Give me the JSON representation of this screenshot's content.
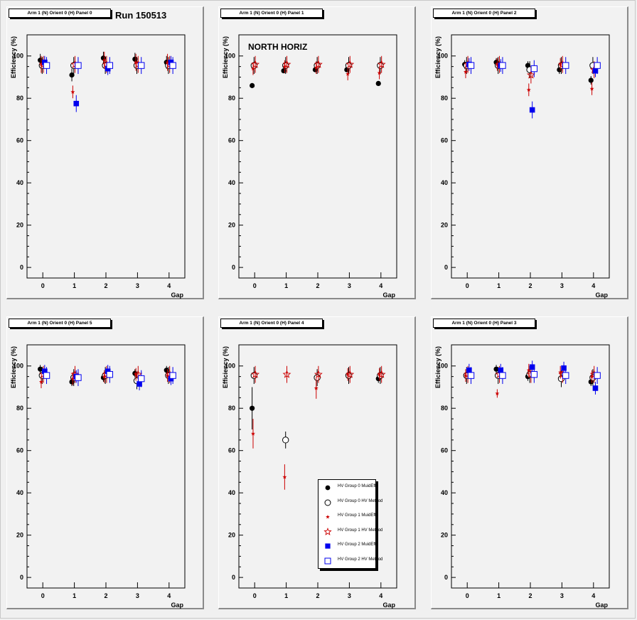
{
  "run_label": "Run 150513",
  "region_label": "NORTH HORIZ",
  "xlabel": "Gap",
  "ylabel": "Efficiency (%)",
  "x_ticks": [
    "0",
    "1",
    "2",
    "3",
    "4"
  ],
  "y_ticks": [
    "0",
    "20",
    "40",
    "60",
    "80",
    "100"
  ],
  "legend": [
    {
      "name": "HV Group 0 MuidEff",
      "marker": "circle-filled",
      "color": "#000000"
    },
    {
      "name": "HV Group 0 HV Method",
      "marker": "circle-open",
      "color": "#000000"
    },
    {
      "name": "HV Group 1 MuidEff",
      "marker": "star-filled",
      "color": "#cc0000"
    },
    {
      "name": "HV Group 1 HV Method",
      "marker": "star-open",
      "color": "#cc0000"
    },
    {
      "name": "HV Group 2 MuidEff",
      "marker": "square-filled",
      "color": "#0000ee"
    },
    {
      "name": "HV Group 2 HV Method",
      "marker": "square-open",
      "color": "#0000ee"
    }
  ],
  "chart_data": [
    {
      "type": "scatter",
      "title": "Arm 1 (N) Orient 0 (H) Panel 0",
      "xlabel": "Gap",
      "ylabel": "Efficiency (%)",
      "xlim": [
        -0.5,
        4.5
      ],
      "ylim": [
        -5,
        110
      ],
      "series": [
        {
          "name": "HV Group 0 MuidEff",
          "x": [
            0,
            1,
            2,
            3,
            4
          ],
          "y": [
            98,
            91,
            99,
            98.5,
            97
          ],
          "err": [
            3,
            3,
            3,
            3,
            3
          ]
        },
        {
          "name": "HV Group 0 HV Method",
          "x": [
            0,
            1,
            2,
            3,
            4
          ],
          "y": [
            95.5,
            95.5,
            95.5,
            95.5,
            95.5
          ],
          "err": [
            4,
            4,
            4,
            4,
            4
          ]
        },
        {
          "name": "HV Group 1 MuidEff",
          "x": [
            0,
            1,
            2,
            3,
            4
          ],
          "y": [
            96,
            83,
            98,
            97,
            97
          ],
          "err": [
            4,
            3,
            4,
            4,
            4
          ]
        },
        {
          "name": "HV Group 1 HV Method",
          "x": [
            0,
            1,
            2,
            3,
            4
          ],
          "y": [
            96,
            96,
            96,
            96,
            96
          ],
          "err": [
            4,
            4,
            4,
            4,
            4
          ]
        },
        {
          "name": "HV Group 2 MuidEff",
          "x": [
            0,
            1,
            2,
            3,
            4
          ],
          "y": [
            97,
            77.5,
            94,
            null,
            97
          ],
          "err": [
            3,
            4,
            3,
            0,
            3
          ]
        },
        {
          "name": "HV Group 2 HV Method",
          "x": [
            0,
            1,
            2,
            3,
            4
          ],
          "y": [
            95.5,
            95.5,
            95.5,
            95.5,
            95.5
          ],
          "err": [
            4,
            4,
            4,
            4,
            4
          ]
        }
      ]
    },
    {
      "type": "scatter",
      "title": "Arm 1 (N) Orient 0 (H) Panel 1",
      "xlabel": "Gap",
      "ylabel": "Efficiency (%)",
      "xlim": [
        -0.5,
        4.5
      ],
      "ylim": [
        -5,
        110
      ],
      "series": [
        {
          "name": "HV Group 0 MuidEff",
          "x": [
            0,
            1,
            2,
            3,
            4
          ],
          "y": [
            86,
            93,
            93.5,
            93.5,
            87
          ],
          "err": [
            1,
            1,
            1,
            1,
            1
          ]
        },
        {
          "name": "HV Group 0 HV Method",
          "x": [
            0,
            1,
            2,
            3,
            4
          ],
          "y": [
            95.5,
            95.5,
            95.5,
            95.5,
            95.5
          ],
          "err": [
            4,
            4,
            4,
            4,
            4
          ]
        },
        {
          "name": "HV Group 1 MuidEff",
          "x": [
            0,
            1,
            2,
            3,
            4
          ],
          "y": [
            94,
            95,
            94.5,
            91.5,
            92
          ],
          "err": [
            3,
            3,
            3,
            3,
            3
          ]
        },
        {
          "name": "HV Group 1 HV Method",
          "x": [
            0,
            1,
            2,
            3,
            4
          ],
          "y": [
            96,
            96,
            96,
            96,
            96
          ],
          "err": [
            4,
            4,
            4,
            4,
            4
          ]
        },
        {
          "name": "HV Group 2 MuidEff",
          "x": [
            0,
            1,
            2,
            3,
            4
          ],
          "y": [
            null,
            null,
            null,
            null,
            null
          ],
          "err": [
            0,
            0,
            0,
            0,
            0
          ]
        },
        {
          "name": "HV Group 2 HV Method",
          "x": [
            0,
            1,
            2,
            3,
            4
          ],
          "y": [
            null,
            null,
            null,
            null,
            null
          ],
          "err": [
            0,
            0,
            0,
            0,
            0
          ]
        }
      ]
    },
    {
      "type": "scatter",
      "title": "Arm 1 (N) Orient 0 (H) Panel 2",
      "xlabel": "Gap",
      "ylabel": "Efficiency (%)",
      "xlim": [
        -0.5,
        4.5
      ],
      "ylim": [
        -5,
        110
      ],
      "series": [
        {
          "name": "HV Group 0 MuidEff",
          "x": [
            0,
            1,
            2,
            3,
            4
          ],
          "y": [
            96,
            97,
            95.5,
            93.5,
            88.5
          ],
          "err": [
            2,
            2,
            2,
            2,
            2
          ]
        },
        {
          "name": "HV Group 0 HV Method",
          "x": [
            0,
            1,
            2,
            3,
            4
          ],
          "y": [
            95.5,
            95.5,
            93.5,
            95.5,
            95.5
          ],
          "err": [
            4,
            4,
            4,
            4,
            4
          ]
        },
        {
          "name": "HV Group 1 MuidEff",
          "x": [
            0,
            1,
            2,
            3,
            4
          ],
          "y": [
            92.5,
            96,
            84,
            96,
            84.5
          ],
          "err": [
            3,
            3,
            3,
            3,
            3
          ]
        },
        {
          "name": "HV Group 1 HV Method",
          "x": [
            0,
            1,
            2,
            3,
            4
          ],
          "y": [
            96,
            96,
            91,
            96,
            93.5
          ],
          "err": [
            4,
            4,
            4,
            4,
            4
          ]
        },
        {
          "name": "HV Group 2 MuidEff",
          "x": [
            0,
            1,
            2,
            3,
            4
          ],
          "y": [
            96,
            95.5,
            74.5,
            null,
            93
          ],
          "err": [
            3,
            3,
            4,
            0,
            3
          ]
        },
        {
          "name": "HV Group 2 HV Method",
          "x": [
            0,
            1,
            2,
            3,
            4
          ],
          "y": [
            95.5,
            95.5,
            94,
            95.5,
            95.5
          ],
          "err": [
            4,
            4,
            4,
            4,
            4
          ]
        }
      ]
    },
    {
      "type": "scatter",
      "title": "Arm 1 (N) Orient 0 (H) Panel 5",
      "xlabel": "Gap",
      "ylabel": "Efficiency (%)",
      "xlim": [
        -0.5,
        4.5
      ],
      "ylim": [
        -5,
        110
      ],
      "series": [
        {
          "name": "HV Group 0 MuidEff",
          "x": [
            0,
            1,
            2,
            3,
            4
          ],
          "y": [
            98.5,
            92.5,
            94.5,
            96.5,
            98
          ],
          "err": [
            2,
            2,
            2,
            2,
            2
          ]
        },
        {
          "name": "HV Group 0 HV Method",
          "x": [
            0,
            1,
            2,
            3,
            4
          ],
          "y": [
            95.5,
            94.5,
            95.5,
            93,
            95.5
          ],
          "err": [
            4,
            4,
            4,
            4,
            4
          ]
        },
        {
          "name": "HV Group 1 MuidEff",
          "x": [
            0,
            1,
            2,
            3,
            4
          ],
          "y": [
            92.5,
            94,
            95,
            96,
            95.5
          ],
          "err": [
            3,
            3,
            3,
            3,
            3
          ]
        },
        {
          "name": "HV Group 1 HV Method",
          "x": [
            0,
            1,
            2,
            3,
            4
          ],
          "y": [
            96,
            96,
            96,
            96,
            96
          ],
          "err": [
            4,
            4,
            4,
            4,
            4
          ]
        },
        {
          "name": "HV Group 2 MuidEff",
          "x": [
            0,
            1,
            2,
            3,
            4
          ],
          "y": [
            97.5,
            95,
            97.5,
            91.5,
            94
          ],
          "err": [
            3,
            3,
            3,
            3,
            3
          ]
        },
        {
          "name": "HV Group 2 HV Method",
          "x": [
            0,
            1,
            2,
            3,
            4
          ],
          "y": [
            95.5,
            94.5,
            96,
            94,
            95.5
          ],
          "err": [
            4,
            4,
            4,
            4,
            4
          ]
        }
      ]
    },
    {
      "type": "scatter",
      "title": "Arm 1 (N) Orient 0 (H) Panel 4",
      "xlabel": "Gap",
      "ylabel": "Efficiency (%)",
      "xlim": [
        -0.5,
        4.5
      ],
      "ylim": [
        -5,
        110
      ],
      "series": [
        {
          "name": "HV Group 0 MuidEff",
          "x": [
            0,
            1,
            2,
            3,
            4
          ],
          "y": [
            80,
            null,
            null,
            null,
            94
          ],
          "err": [
            10,
            0,
            0,
            0,
            2
          ]
        },
        {
          "name": "HV Group 0 HV Method",
          "x": [
            0,
            1,
            2,
            3,
            4
          ],
          "y": [
            95.5,
            65,
            94.5,
            95.5,
            95.5
          ],
          "err": [
            4,
            4,
            4,
            4,
            4
          ]
        },
        {
          "name": "HV Group 1 MuidEff",
          "x": [
            0,
            1,
            2,
            3,
            4
          ],
          "y": [
            68,
            47.5,
            89.5,
            96,
            96
          ],
          "err": [
            7,
            6,
            5,
            3,
            3
          ]
        },
        {
          "name": "HV Group 1 HV Method",
          "x": [
            0,
            1,
            2,
            3,
            4
          ],
          "y": [
            96,
            96,
            96,
            96,
            96
          ],
          "err": [
            4,
            4,
            4,
            4,
            4
          ]
        },
        {
          "name": "HV Group 2 MuidEff",
          "x": [
            0,
            1,
            2,
            3,
            4
          ],
          "y": [
            null,
            null,
            null,
            null,
            null
          ],
          "err": [
            0,
            0,
            0,
            0,
            0
          ]
        },
        {
          "name": "HV Group 2 HV Method",
          "x": [
            0,
            1,
            2,
            3,
            4
          ],
          "y": [
            null,
            null,
            null,
            null,
            null
          ],
          "err": [
            0,
            0,
            0,
            0,
            0
          ]
        }
      ]
    },
    {
      "type": "scatter",
      "title": "Arm 1 (N) Orient 0 (H) Panel 3",
      "xlabel": "Gap",
      "ylabel": "Efficiency (%)",
      "xlim": [
        -0.5,
        4.5
      ],
      "ylim": [
        -5,
        110
      ],
      "series": [
        {
          "name": "HV Group 0 MuidEff",
          "x": [
            0,
            1,
            2,
            3,
            4
          ],
          "y": [
            null,
            98.5,
            95,
            null,
            92.5
          ],
          "err": [
            0,
            2,
            2,
            0,
            2
          ]
        },
        {
          "name": "HV Group 0 HV Method",
          "x": [
            0,
            1,
            2,
            3,
            4
          ],
          "y": [
            95.5,
            95.5,
            96,
            94,
            94.5
          ],
          "err": [
            4,
            4,
            4,
            4,
            4
          ]
        },
        {
          "name": "HV Group 1 MuidEff",
          "x": [
            0,
            1,
            2,
            3,
            4
          ],
          "y": [
            95.5,
            87,
            98,
            97,
            95
          ],
          "err": [
            3,
            2,
            3,
            3,
            3
          ]
        },
        {
          "name": "HV Group 1 HV Method",
          "x": [
            0,
            1,
            2,
            3,
            4
          ],
          "y": [
            96,
            96,
            96,
            96,
            96
          ],
          "err": [
            4,
            4,
            4,
            4,
            4
          ]
        },
        {
          "name": "HV Group 2 MuidEff",
          "x": [
            0,
            1,
            2,
            3,
            4
          ],
          "y": [
            98,
            98,
            99.5,
            99,
            89.5
          ],
          "err": [
            3,
            3,
            3,
            3,
            3
          ]
        },
        {
          "name": "HV Group 2 HV Method",
          "x": [
            0,
            1,
            2,
            3,
            4
          ],
          "y": [
            95.5,
            95.5,
            96,
            95.5,
            95.5
          ],
          "err": [
            4,
            4,
            4,
            4,
            4
          ]
        }
      ]
    }
  ]
}
